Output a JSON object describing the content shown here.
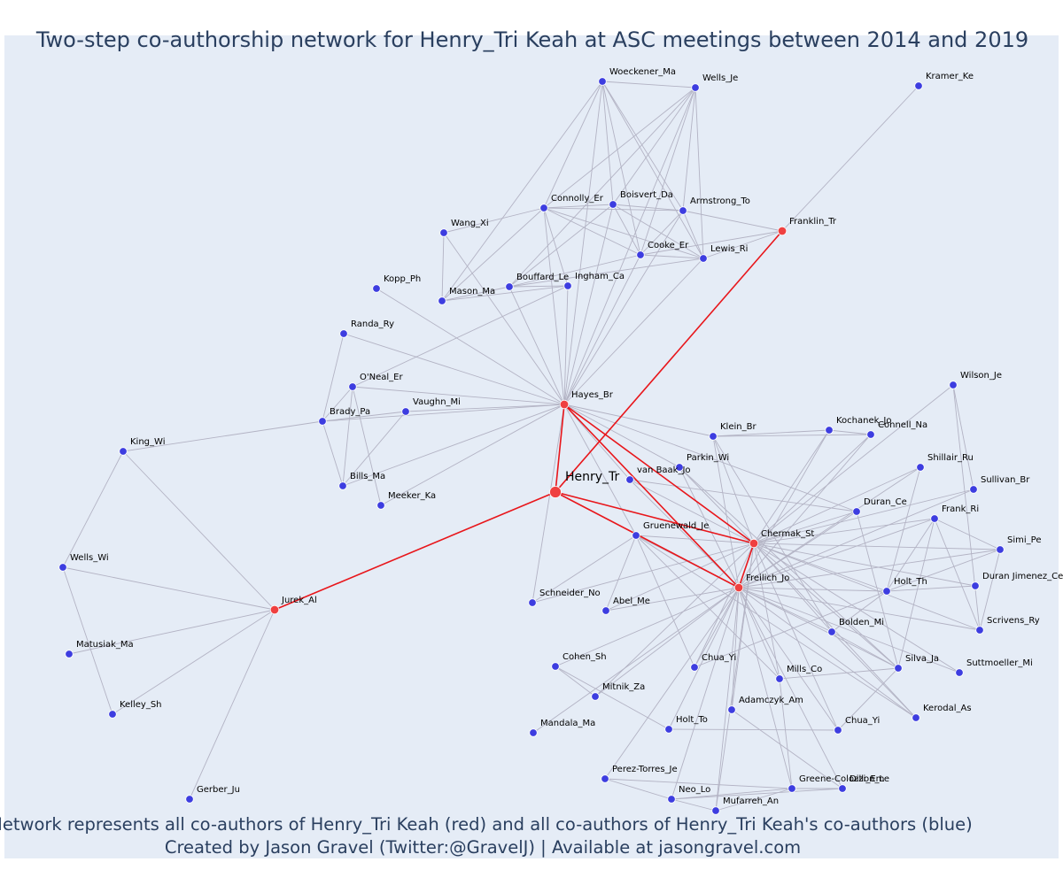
{
  "title": "Two-step co-authorship network for Henry_Tri Keah at ASC meetings between 2014 and 2019",
  "caption_line1": "Network represents all co-authors of Henry_Tri Keah (red) and all co-authors of Henry_Tri Keah's co-authors (blue)",
  "caption_line2": "Created by Jason Gravel (Twitter:@GravelJ) | Available at jasongravel.com",
  "colors": {
    "background": "#e5ecf6",
    "edge": "#b3b3c4",
    "ego_edge": "#e8161b",
    "red_node": "#ef4040",
    "blue_node": "#3d3de0",
    "node_outline": "#ffffff",
    "title": "#2a3f5f"
  },
  "ego": "Henry_Tr",
  "nodes": [
    {
      "id": "Henry_Tr",
      "label": "Henry_Tr",
      "group": "ego"
    },
    {
      "id": "Hayes_Br",
      "label": "Hayes_Br",
      "group": "red"
    },
    {
      "id": "Franklin_Tr",
      "label": "Franklin_Tr",
      "group": "red"
    },
    {
      "id": "Jurek_Al",
      "label": "Jurek_Al",
      "group": "red"
    },
    {
      "id": "Chermak_St",
      "label": "Chermak_St",
      "group": "red"
    },
    {
      "id": "Freilich_Jo",
      "label": "Freilich_Jo",
      "group": "red"
    },
    {
      "id": "Woeckener_Ma",
      "label": "Woeckener_Ma",
      "group": "blue"
    },
    {
      "id": "Wells_Je",
      "label": "Wells_Je",
      "group": "blue"
    },
    {
      "id": "Kramer_Ke",
      "label": "Kramer_Ke",
      "group": "blue"
    },
    {
      "id": "Connolly_Er",
      "label": "Connolly_Er",
      "group": "blue"
    },
    {
      "id": "Boisvert_Da",
      "label": "Boisvert_Da",
      "group": "blue"
    },
    {
      "id": "Armstrong_To",
      "label": "Armstrong_To",
      "group": "blue"
    },
    {
      "id": "Wang_Xi",
      "label": "Wang_Xi",
      "group": "blue"
    },
    {
      "id": "Cooke_Er",
      "label": "Cooke_Er",
      "group": "blue"
    },
    {
      "id": "Lewis_Ri",
      "label": "Lewis_Ri",
      "group": "blue"
    },
    {
      "id": "Kopp_Ph",
      "label": "Kopp_Ph",
      "group": "blue"
    },
    {
      "id": "Bouffard_Le",
      "label": "Bouffard_Le",
      "group": "blue"
    },
    {
      "id": "Ingham_Ca",
      "label": "Ingham_Ca",
      "group": "blue"
    },
    {
      "id": "Mason_Ma",
      "label": "Mason_Ma",
      "group": "blue"
    },
    {
      "id": "Randa_Ry",
      "label": "Randa_Ry",
      "group": "blue"
    },
    {
      "id": "ONeal_Er",
      "label": "O'Neal_Er",
      "group": "blue"
    },
    {
      "id": "Vaughn_Mi",
      "label": "Vaughn_Mi",
      "group": "blue"
    },
    {
      "id": "Brady_Pa",
      "label": "Brady_Pa",
      "group": "blue"
    },
    {
      "id": "Bills_Ma",
      "label": "Bills_Ma",
      "group": "blue"
    },
    {
      "id": "Meeker_Ka",
      "label": "Meeker_Ka",
      "group": "blue"
    },
    {
      "id": "King_Wi",
      "label": "King_Wi",
      "group": "blue"
    },
    {
      "id": "Wells_Wi",
      "label": "Wells_Wi",
      "group": "blue"
    },
    {
      "id": "Matusiak_Ma",
      "label": "Matusiak_Ma",
      "group": "blue"
    },
    {
      "id": "Kelley_Sh",
      "label": "Kelley_Sh",
      "group": "blue"
    },
    {
      "id": "Gerber_Ju",
      "label": "Gerber_Ju",
      "group": "blue"
    },
    {
      "id": "Klein_Br",
      "label": "Klein_Br",
      "group": "blue"
    },
    {
      "id": "Kochanek_Jo",
      "label": "Kochanek_Jo",
      "group": "blue"
    },
    {
      "id": "Connell_Na",
      "label": "Connell_Na",
      "group": "blue"
    },
    {
      "id": "Wilson_Je",
      "label": "Wilson_Je",
      "group": "blue"
    },
    {
      "id": "Parkin_Wi",
      "label": "Parkin_Wi",
      "group": "blue"
    },
    {
      "id": "vanBaak_Jo",
      "label": "van Baak_Jo",
      "group": "blue"
    },
    {
      "id": "Shillair_Ru",
      "label": "Shillair_Ru",
      "group": "blue"
    },
    {
      "id": "Sullivan_Br",
      "label": "Sullivan_Br",
      "group": "blue"
    },
    {
      "id": "Duran_Ce",
      "label": "Duran_Ce",
      "group": "blue"
    },
    {
      "id": "Frank_Ri",
      "label": "Frank_Ri",
      "group": "blue"
    },
    {
      "id": "Gruenewald_Je",
      "label": "Gruenewald_Je",
      "group": "blue"
    },
    {
      "id": "Simi_Pe",
      "label": "Simi_Pe",
      "group": "blue"
    },
    {
      "id": "DuranJimenez_Ce",
      "label": "Duran Jimenez_Ce",
      "group": "blue"
    },
    {
      "id": "Holt_Th",
      "label": "Holt_Th",
      "group": "blue"
    },
    {
      "id": "Schneider_No",
      "label": "Schneider_No",
      "group": "blue"
    },
    {
      "id": "Abel_Me",
      "label": "Abel_Me",
      "group": "blue"
    },
    {
      "id": "Scrivens_Ry",
      "label": "Scrivens_Ry",
      "group": "blue"
    },
    {
      "id": "Bolden_Mi",
      "label": "Bolden_Mi",
      "group": "blue"
    },
    {
      "id": "Cohen_Sh",
      "label": "Cohen_Sh",
      "group": "blue"
    },
    {
      "id": "Chua_Yi_a",
      "label": "Chua_Yi",
      "group": "blue"
    },
    {
      "id": "Silva_Ja",
      "label": "Silva_Ja",
      "group": "blue"
    },
    {
      "id": "Suttmoeller_Mi",
      "label": "Suttmoeller_Mi",
      "group": "blue"
    },
    {
      "id": "Mills_Co",
      "label": "Mills_Co",
      "group": "blue"
    },
    {
      "id": "Mitnik_Za",
      "label": "Mitnik_Za",
      "group": "blue"
    },
    {
      "id": "Adamczyk_Am",
      "label": "Adamczyk_Am",
      "group": "blue"
    },
    {
      "id": "Kerodal_As",
      "label": "Kerodal_As",
      "group": "blue"
    },
    {
      "id": "Mandala_Ma",
      "label": "Mandala_Ma",
      "group": "blue"
    },
    {
      "id": "Holt_To",
      "label": "Holt_To",
      "group": "blue"
    },
    {
      "id": "Chua_Yi_b",
      "label": "Chua_Yi",
      "group": "blue"
    },
    {
      "id": "PerezTorres_Je",
      "label": "Perez-Torres_Je",
      "group": "blue"
    },
    {
      "id": "GreeneColozzi_Em",
      "label": "Greene-Colozzi_Em",
      "group": "blue"
    },
    {
      "id": "Dillon_Le",
      "label": "Dillon_Le",
      "group": "blue"
    },
    {
      "id": "Neo_Lo",
      "label": "Neo_Lo",
      "group": "blue"
    },
    {
      "id": "Mufarreh_An",
      "label": "Mufarreh_An",
      "group": "blue"
    }
  ],
  "ego_edges": [
    [
      "Henry_Tr",
      "Hayes_Br"
    ],
    [
      "Henry_Tr",
      "Franklin_Tr"
    ],
    [
      "Henry_Tr",
      "Jurek_Al"
    ],
    [
      "Henry_Tr",
      "Chermak_St"
    ],
    [
      "Henry_Tr",
      "Freilich_Jo"
    ],
    [
      "Hayes_Br",
      "Chermak_St"
    ],
    [
      "Hayes_Br",
      "Freilich_Jo"
    ],
    [
      "Chermak_St",
      "Freilich_Jo"
    ]
  ],
  "edges": [
    [
      "Franklin_Tr",
      "Kramer_Ke"
    ],
    [
      "Franklin_Tr",
      "Lewis_Ri"
    ],
    [
      "Franklin_Tr",
      "Armstrong_To"
    ],
    [
      "Franklin_Tr",
      "Cooke_Er"
    ],
    [
      "Woeckener_Ma",
      "Wells_Je"
    ],
    [
      "Woeckener_Ma",
      "Connolly_Er"
    ],
    [
      "Woeckener_Ma",
      "Boisvert_Da"
    ],
    [
      "Woeckener_Ma",
      "Armstrong_To"
    ],
    [
      "Woeckener_Ma",
      "Cooke_Er"
    ],
    [
      "Woeckener_Ma",
      "Lewis_Ri"
    ],
    [
      "Woeckener_Ma",
      "Hayes_Br"
    ],
    [
      "Woeckener_Ma",
      "Mason_Ma"
    ],
    [
      "Wells_Je",
      "Connolly_Er"
    ],
    [
      "Wells_Je",
      "Boisvert_Da"
    ],
    [
      "Wells_Je",
      "Armstrong_To"
    ],
    [
      "Wells_Je",
      "Cooke_Er"
    ],
    [
      "Wells_Je",
      "Lewis_Ri"
    ],
    [
      "Wells_Je",
      "Hayes_Br"
    ],
    [
      "Wells_Je",
      "Bouffard_Le"
    ],
    [
      "Connolly_Er",
      "Boisvert_Da"
    ],
    [
      "Connolly_Er",
      "Armstrong_To"
    ],
    [
      "Connolly_Er",
      "Cooke_Er"
    ],
    [
      "Connolly_Er",
      "Lewis_Ri"
    ],
    [
      "Connolly_Er",
      "Hayes_Br"
    ],
    [
      "Connolly_Er",
      "Mason_Ma"
    ],
    [
      "Connolly_Er",
      "Ingham_Ca"
    ],
    [
      "Boisvert_Da",
      "Armstrong_To"
    ],
    [
      "Boisvert_Da",
      "Cooke_Er"
    ],
    [
      "Boisvert_Da",
      "Lewis_Ri"
    ],
    [
      "Boisvert_Da",
      "Hayes_Br"
    ],
    [
      "Boisvert_Da",
      "Bouffard_Le"
    ],
    [
      "Armstrong_To",
      "Cooke_Er"
    ],
    [
      "Armstrong_To",
      "Lewis_Ri"
    ],
    [
      "Armstrong_To",
      "Hayes_Br"
    ],
    [
      "Cooke_Er",
      "Lewis_Ri"
    ],
    [
      "Cooke_Er",
      "Hayes_Br"
    ],
    [
      "Cooke_Er",
      "Bouffard_Le"
    ],
    [
      "Lewis_Ri",
      "Hayes_Br"
    ],
    [
      "Lewis_Ri",
      "Bouffard_Le"
    ],
    [
      "Wang_Xi",
      "Connolly_Er"
    ],
    [
      "Wang_Xi",
      "Mason_Ma"
    ],
    [
      "Wang_Xi",
      "Hayes_Br"
    ],
    [
      "Mason_Ma",
      "Ingham_Ca"
    ],
    [
      "Mason_Ma",
      "Bouffard_Le"
    ],
    [
      "Bouffard_Le",
      "Ingham_Ca"
    ],
    [
      "Bouffard_Le",
      "Hayes_Br"
    ],
    [
      "Ingham_Ca",
      "Hayes_Br"
    ],
    [
      "Kopp_Ph",
      "Hayes_Br"
    ],
    [
      "Randa_Ry",
      "Hayes_Br"
    ],
    [
      "Randa_Ry",
      "Brady_Pa"
    ],
    [
      "ONeal_Er",
      "Hayes_Br"
    ],
    [
      "ONeal_Er",
      "Brady_Pa"
    ],
    [
      "ONeal_Er",
      "Bills_Ma"
    ],
    [
      "ONeal_Er",
      "Meeker_Ka"
    ],
    [
      "ONeal_Er",
      "Ingham_Ca"
    ],
    [
      "Vaughn_Mi",
      "Hayes_Br"
    ],
    [
      "Vaughn_Mi",
      "Brady_Pa"
    ],
    [
      "Vaughn_Mi",
      "Bills_Ma"
    ],
    [
      "Brady_Pa",
      "Hayes_Br"
    ],
    [
      "Brady_Pa",
      "King_Wi"
    ],
    [
      "Brady_Pa",
      "Bills_Ma"
    ],
    [
      "Bills_Ma",
      "Hayes_Br"
    ],
    [
      "Meeker_Ka",
      "Hayes_Br"
    ],
    [
      "King_Wi",
      "Wells_Wi"
    ],
    [
      "King_Wi",
      "Jurek_Al"
    ],
    [
      "Wells_Wi",
      "Jurek_Al"
    ],
    [
      "Wells_Wi",
      "Kelley_Sh"
    ],
    [
      "Matusiak_Ma",
      "Jurek_Al"
    ],
    [
      "Kelley_Sh",
      "Jurek_Al"
    ],
    [
      "Gerber_Ju",
      "Jurek_Al"
    ],
    [
      "Hayes_Br",
      "Klein_Br"
    ],
    [
      "Hayes_Br",
      "vanBaak_Jo"
    ],
    [
      "Hayes_Br",
      "Gruenewald_Je"
    ],
    [
      "Hayes_Br",
      "Parkin_Wi"
    ],
    [
      "Hayes_Br",
      "Duran_Ce"
    ],
    [
      "Hayes_Br",
      "Schneider_No"
    ],
    [
      "Klein_Br",
      "Kochanek_Jo"
    ],
    [
      "Klein_Br",
      "Connell_Na"
    ],
    [
      "Klein_Br",
      "Chermak_St"
    ],
    [
      "Klein_Br",
      "Freilich_Jo"
    ],
    [
      "Klein_Br",
      "Bolden_Mi"
    ],
    [
      "Kochanek_Jo",
      "Connell_Na"
    ],
    [
      "Kochanek_Jo",
      "Chermak_St"
    ],
    [
      "Kochanek_Jo",
      "Freilich_Jo"
    ],
    [
      "Connell_Na",
      "Chermak_St"
    ],
    [
      "Connell_Na",
      "Freilich_Jo"
    ],
    [
      "Wilson_Je",
      "Sullivan_Br"
    ],
    [
      "Wilson_Je",
      "Chermak_St"
    ],
    [
      "Wilson_Je",
      "Scrivens_Ry"
    ],
    [
      "Parkin_Wi",
      "Chermak_St"
    ],
    [
      "Parkin_Wi",
      "Freilich_Jo"
    ],
    [
      "Parkin_Wi",
      "Silva_Ja"
    ],
    [
      "vanBaak_Jo",
      "Chermak_St"
    ],
    [
      "vanBaak_Jo",
      "Freilich_Jo"
    ],
    [
      "vanBaak_Jo",
      "Duran_Ce"
    ],
    [
      "Shillair_Ru",
      "Chermak_St"
    ],
    [
      "Shillair_Ru",
      "Holt_Th"
    ],
    [
      "Shillair_Ru",
      "Freilich_Jo"
    ],
    [
      "Sullivan_Br",
      "Chermak_St"
    ],
    [
      "Sullivan_Br",
      "Freilich_Jo"
    ],
    [
      "Duran_Ce",
      "Chermak_St"
    ],
    [
      "Duran_Ce",
      "Freilich_Jo"
    ],
    [
      "Duran_Ce",
      "Silva_Ja"
    ],
    [
      "Frank_Ri",
      "Chermak_St"
    ],
    [
      "Frank_Ri",
      "Freilich_Jo"
    ],
    [
      "Frank_Ri",
      "Holt_Th"
    ],
    [
      "Frank_Ri",
      "Simi_Pe"
    ],
    [
      "Frank_Ri",
      "Scrivens_Ry"
    ],
    [
      "Frank_Ri",
      "Silva_Ja"
    ],
    [
      "Gruenewald_Je",
      "Chermak_St"
    ],
    [
      "Gruenewald_Je",
      "Freilich_Jo"
    ],
    [
      "Gruenewald_Je",
      "Abel_Me"
    ],
    [
      "Gruenewald_Je",
      "Schneider_No"
    ],
    [
      "Gruenewald_Je",
      "Chua_Yi_a"
    ],
    [
      "Gruenewald_Je",
      "Mills_Co"
    ],
    [
      "Gruenewald_Je",
      "Kerodal_As"
    ],
    [
      "Simi_Pe",
      "Chermak_St"
    ],
    [
      "Simi_Pe",
      "Freilich_Jo"
    ],
    [
      "Simi_Pe",
      "Holt_Th"
    ],
    [
      "Simi_Pe",
      "Scrivens_Ry"
    ],
    [
      "DuranJimenez_Ce",
      "Chermak_St"
    ],
    [
      "DuranJimenez_Ce",
      "Holt_Th"
    ],
    [
      "Holt_Th",
      "Chermak_St"
    ],
    [
      "Holt_Th",
      "Freilich_Jo"
    ],
    [
      "Holt_Th",
      "Bolden_Mi"
    ],
    [
      "Holt_Th",
      "Chua_Yi_a"
    ],
    [
      "Scrivens_Ry",
      "Chermak_St"
    ],
    [
      "Scrivens_Ry",
      "Freilich_Jo"
    ],
    [
      "Schneider_No",
      "Chermak_St"
    ],
    [
      "Abel_Me",
      "Chermak_St"
    ],
    [
      "Abel_Me",
      "Freilich_Jo"
    ],
    [
      "Bolden_Mi",
      "Chermak_St"
    ],
    [
      "Bolden_Mi",
      "Freilich_Jo"
    ],
    [
      "Bolden_Mi",
      "Kerodal_As"
    ],
    [
      "Bolden_Mi",
      "Silva_Ja"
    ],
    [
      "Cohen_Sh",
      "Freilich_Jo"
    ],
    [
      "Cohen_Sh",
      "Mitnik_Za"
    ],
    [
      "Cohen_Sh",
      "Holt_To"
    ],
    [
      "Chua_Yi_a",
      "Chermak_St"
    ],
    [
      "Chua_Yi_a",
      "Freilich_Jo"
    ],
    [
      "Silva_Ja",
      "Chermak_St"
    ],
    [
      "Silva_Ja",
      "Freilich_Jo"
    ],
    [
      "Silva_Ja",
      "Mills_Co"
    ],
    [
      "Silva_Ja",
      "Chua_Yi_b"
    ],
    [
      "Suttmoeller_Mi",
      "Chermak_St"
    ],
    [
      "Suttmoeller_Mi",
      "Freilich_Jo"
    ],
    [
      "Mills_Co",
      "Chermak_St"
    ],
    [
      "Mills_Co",
      "Freilich_Jo"
    ],
    [
      "Mills_Co",
      "GreeneColozzi_Em"
    ],
    [
      "Mitnik_Za",
      "Freilich_Jo"
    ],
    [
      "Mitnik_Za",
      "Chermak_St"
    ],
    [
      "Adamczyk_Am",
      "Freilich_Jo"
    ],
    [
      "Adamczyk_Am",
      "Chermak_St"
    ],
    [
      "Adamczyk_Am",
      "Dillon_Le"
    ],
    [
      "Kerodal_As",
      "Freilich_Jo"
    ],
    [
      "Kerodal_As",
      "Chermak_St"
    ],
    [
      "Mandala_Ma",
      "Freilich_Jo"
    ],
    [
      "Holt_To",
      "Freilich_Jo"
    ],
    [
      "Holt_To",
      "Chua_Yi_b"
    ],
    [
      "Chua_Yi_b",
      "Freilich_Jo"
    ],
    [
      "Chua_Yi_b",
      "Chermak_St"
    ],
    [
      "PerezTorres_Je",
      "Freilich_Jo"
    ],
    [
      "PerezTorres_Je",
      "GreeneColozzi_Em"
    ],
    [
      "PerezTorres_Je",
      "Neo_Lo"
    ],
    [
      "GreeneColozzi_Em",
      "Freilich_Jo"
    ],
    [
      "GreeneColozzi_Em",
      "Neo_Lo"
    ],
    [
      "GreeneColozzi_Em",
      "Mufarreh_An"
    ],
    [
      "GreeneColozzi_Em",
      "Dillon_Le"
    ],
    [
      "Dillon_Le",
      "Freilich_Jo"
    ],
    [
      "Neo_Lo",
      "Freilich_Jo"
    ],
    [
      "Neo_Lo",
      "Mufarreh_An"
    ],
    [
      "Neo_Lo",
      "Dillon_Le"
    ],
    [
      "Mufarreh_An",
      "Freilich_Jo"
    ],
    [
      "Mufarreh_An",
      "Chermak_St"
    ]
  ]
}
